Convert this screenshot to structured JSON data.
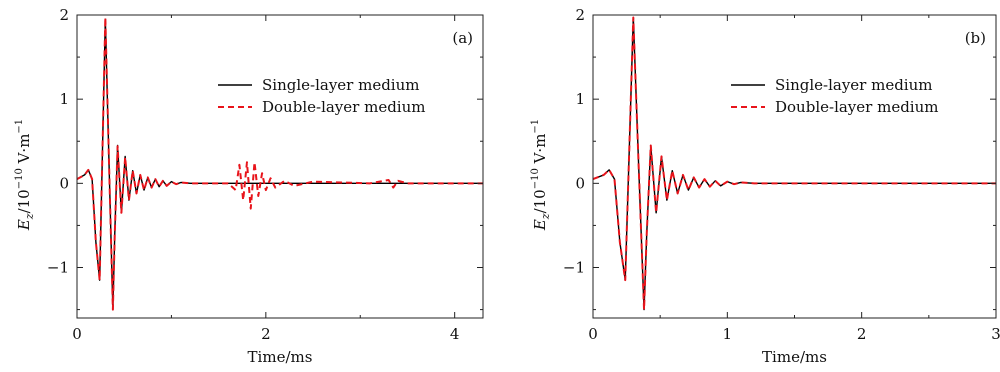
{
  "chart_data": [
    {
      "type": "line",
      "panel_label": "(a)",
      "xlabel": "Time/ms",
      "ylabel_main": "E",
      "ylabel_sub": "z",
      "ylabel_rest": "/10",
      "ylabel_exp": "−10",
      "ylabel_unit": " V·m",
      "ylabel_unit_exp": "−1",
      "xlim": [
        0,
        4.3
      ],
      "ylim": [
        -1.6,
        2.0
      ],
      "xticks": [
        0,
        2,
        4
      ],
      "xtick_labels": [
        "0",
        "2",
        "4"
      ],
      "yticks": [
        -1,
        0,
        1,
        2
      ],
      "ytick_labels": [
        "−1",
        "0",
        "1",
        "2"
      ],
      "legend_position": "right-upper",
      "series": [
        {
          "name": "Single-layer medium",
          "style": "solid",
          "color": "#000000",
          "x": [
            0,
            0.08,
            0.12,
            0.16,
            0.2,
            0.24,
            0.27,
            0.3,
            0.34,
            0.38,
            0.4,
            0.43,
            0.47,
            0.51,
            0.55,
            0.59,
            0.63,
            0.67,
            0.71,
            0.75,
            0.79,
            0.83,
            0.87,
            0.91,
            0.95,
            1.0,
            1.05,
            1.1,
            1.2,
            1.4,
            1.6,
            2.0,
            2.5,
            3.0,
            3.5,
            4.0,
            4.3
          ],
          "y": [
            0.05,
            0.1,
            0.16,
            0.05,
            -0.7,
            -1.15,
            0.4,
            1.95,
            0.2,
            -1.5,
            -0.6,
            0.45,
            -0.35,
            0.32,
            -0.2,
            0.15,
            -0.12,
            0.1,
            -0.08,
            0.07,
            -0.05,
            0.05,
            -0.04,
            0.03,
            -0.03,
            0.02,
            -0.01,
            0.01,
            0.0,
            0.0,
            0.0,
            0.0,
            0.0,
            0.0,
            0.0,
            0.0,
            0.0
          ]
        },
        {
          "name": "Double-layer medium",
          "style": "dashed",
          "color": "#e8141b",
          "x": [
            0,
            0.08,
            0.12,
            0.16,
            0.2,
            0.24,
            0.27,
            0.3,
            0.34,
            0.38,
            0.4,
            0.43,
            0.47,
            0.51,
            0.55,
            0.59,
            0.63,
            0.67,
            0.71,
            0.75,
            0.79,
            0.83,
            0.87,
            0.91,
            0.95,
            1.0,
            1.05,
            1.1,
            1.2,
            1.4,
            1.6,
            1.68,
            1.72,
            1.76,
            1.8,
            1.84,
            1.88,
            1.92,
            1.96,
            2.0,
            2.05,
            2.1,
            2.2,
            2.3,
            2.5,
            2.8,
            3.1,
            3.3,
            3.35,
            3.4,
            3.5,
            4.0,
            4.3
          ],
          "y": [
            0.05,
            0.1,
            0.16,
            0.05,
            -0.7,
            -1.15,
            0.4,
            1.97,
            0.2,
            -1.5,
            -0.6,
            0.44,
            -0.35,
            0.31,
            -0.2,
            0.15,
            -0.12,
            0.1,
            -0.08,
            0.07,
            -0.05,
            0.05,
            -0.04,
            0.03,
            -0.03,
            0.02,
            -0.01,
            0.01,
            0.0,
            0.0,
            0.0,
            -0.08,
            0.22,
            -0.2,
            0.25,
            -0.3,
            0.25,
            -0.15,
            0.12,
            -0.08,
            0.06,
            -0.05,
            0.03,
            -0.03,
            0.02,
            0.01,
            0.0,
            0.04,
            -0.05,
            0.03,
            0.0,
            0.0,
            0.0
          ]
        }
      ]
    },
    {
      "type": "line",
      "panel_label": "(b)",
      "xlabel": "Time/ms",
      "ylabel_main": "E",
      "ylabel_sub": "z",
      "ylabel_rest": "/10",
      "ylabel_exp": "−10",
      "ylabel_unit": " V·m",
      "ylabel_unit_exp": "−1",
      "xlim": [
        0,
        3.0
      ],
      "ylim": [
        -1.6,
        2.0
      ],
      "xticks": [
        0,
        1,
        2,
        3
      ],
      "xtick_labels": [
        "0",
        "1",
        "2",
        "3"
      ],
      "yticks": [
        -1,
        0,
        1,
        2
      ],
      "ytick_labels": [
        "−1",
        "0",
        "1",
        "2"
      ],
      "legend_position": "right-upper",
      "series": [
        {
          "name": "Single-layer medium",
          "style": "solid",
          "color": "#000000",
          "x": [
            0,
            0.08,
            0.12,
            0.16,
            0.2,
            0.24,
            0.27,
            0.3,
            0.34,
            0.38,
            0.4,
            0.43,
            0.47,
            0.51,
            0.55,
            0.59,
            0.63,
            0.67,
            0.71,
            0.75,
            0.79,
            0.83,
            0.87,
            0.91,
            0.95,
            1.0,
            1.05,
            1.1,
            1.2,
            1.4,
            1.6,
            2.0,
            2.5,
            3.0
          ],
          "y": [
            0.05,
            0.1,
            0.16,
            0.05,
            -0.7,
            -1.15,
            0.4,
            1.97,
            0.2,
            -1.5,
            -0.6,
            0.45,
            -0.35,
            0.32,
            -0.2,
            0.15,
            -0.12,
            0.1,
            -0.08,
            0.07,
            -0.05,
            0.05,
            -0.04,
            0.03,
            -0.03,
            0.02,
            -0.01,
            0.01,
            0.0,
            0.0,
            0.0,
            0.0,
            0.0,
            0.0
          ]
        },
        {
          "name": "Double-layer medium",
          "style": "dashed",
          "color": "#e8141b",
          "x": [
            0,
            0.08,
            0.12,
            0.16,
            0.2,
            0.24,
            0.27,
            0.3,
            0.34,
            0.38,
            0.4,
            0.43,
            0.47,
            0.51,
            0.55,
            0.59,
            0.63,
            0.67,
            0.71,
            0.75,
            0.79,
            0.83,
            0.87,
            0.91,
            0.95,
            1.0,
            1.05,
            1.1,
            1.2,
            1.4,
            1.6,
            2.0,
            2.5,
            3.0
          ],
          "y": [
            0.05,
            0.1,
            0.16,
            0.05,
            -0.7,
            -1.15,
            0.4,
            1.97,
            0.2,
            -1.5,
            -0.6,
            0.45,
            -0.35,
            0.32,
            -0.2,
            0.15,
            -0.12,
            0.1,
            -0.08,
            0.07,
            -0.05,
            0.05,
            -0.04,
            0.03,
            -0.03,
            0.02,
            -0.01,
            0.01,
            0.0,
            0.0,
            0.0,
            0.0,
            0.0,
            0.0
          ]
        }
      ]
    }
  ]
}
